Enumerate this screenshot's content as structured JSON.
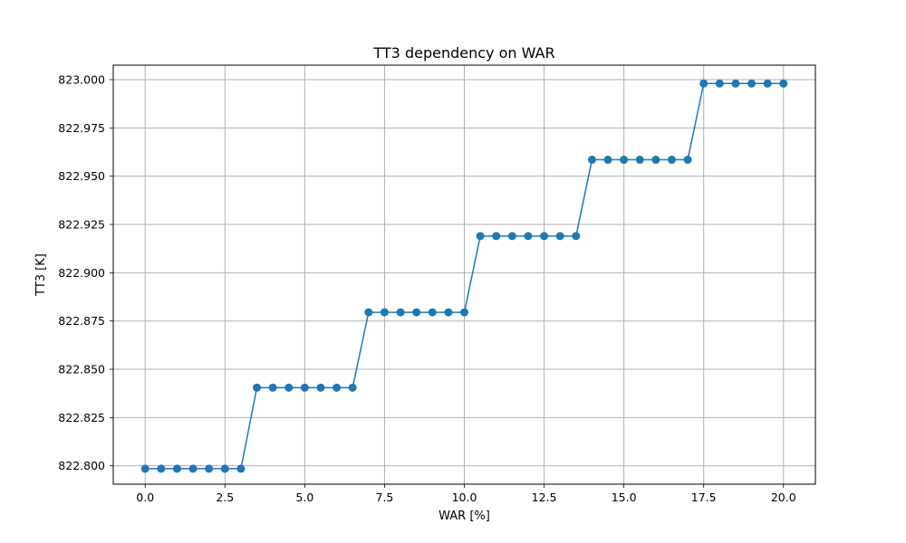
{
  "chart_data": {
    "type": "line",
    "title": "TT3 dependency on WAR",
    "xlabel": "WAR [%]",
    "ylabel": "TT3 [K]",
    "xlim": [
      -1.0,
      21.0
    ],
    "ylim": [
      822.7905,
      823.0075
    ],
    "xticks": [
      0.0,
      2.5,
      5.0,
      7.5,
      10.0,
      12.5,
      15.0,
      17.5,
      20.0
    ],
    "xtick_labels": [
      "0.0",
      "2.5",
      "5.0",
      "7.5",
      "10.0",
      "12.5",
      "15.0",
      "17.5",
      "20.0"
    ],
    "yticks": [
      822.8,
      822.825,
      822.85,
      822.875,
      822.9,
      822.925,
      822.95,
      822.975,
      823.0
    ],
    "ytick_labels": [
      "822.800",
      "822.825",
      "822.850",
      "822.875",
      "822.900",
      "822.925",
      "822.950",
      "822.975",
      "823.000"
    ],
    "grid": true,
    "marker": "circle",
    "color": "#1f77b4",
    "series": [
      {
        "x": [
          0.0,
          0.5,
          1.0,
          1.5,
          2.0,
          2.5,
          3.0,
          3.5,
          4.0,
          4.5,
          5.0,
          5.5,
          6.0,
          6.5,
          7.0,
          7.5,
          8.0,
          8.5,
          9.0,
          9.5,
          10.0,
          10.5,
          11.0,
          11.5,
          12.0,
          12.5,
          13.0,
          13.5,
          14.0,
          14.5,
          15.0,
          15.5,
          16.0,
          16.5,
          17.0,
          17.5,
          18.0,
          18.5,
          19.0,
          19.5,
          20.0
        ],
        "y": [
          822.7985,
          822.7985,
          822.7985,
          822.7985,
          822.7985,
          822.7985,
          822.7985,
          822.8405,
          822.8405,
          822.8405,
          822.8405,
          822.8405,
          822.8405,
          822.8405,
          822.8795,
          822.8795,
          822.8795,
          822.8795,
          822.8795,
          822.8795,
          822.8795,
          822.919,
          822.919,
          822.919,
          822.919,
          822.919,
          822.919,
          822.919,
          822.9585,
          822.9585,
          822.9585,
          822.9585,
          822.9585,
          822.9585,
          822.9585,
          822.998,
          822.998,
          822.998,
          822.998,
          822.998,
          822.998
        ]
      }
    ]
  }
}
